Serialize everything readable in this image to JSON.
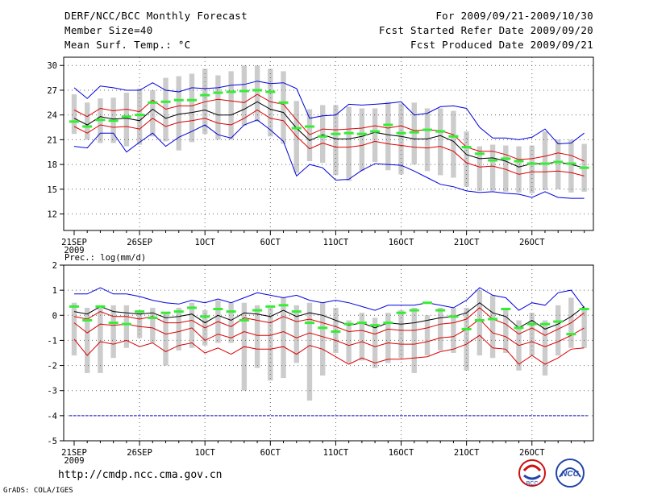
{
  "header": {
    "title": "DERF/NCC/BCC Monthly Forecast",
    "member": "Member Size=40",
    "var1": "Mean Surf. Temp.: °C",
    "period": "For 2009/09/21-2009/10/30",
    "started": "Fcst Started Refer Date 2009/09/20",
    "produced": "Fcst Produced Date 2009/09/21"
  },
  "footer": {
    "url": "http://cmdp.ncc.cma.gov.cn",
    "grads": "GrADS: COLA/IGES"
  },
  "logos": {
    "left": "BCC",
    "right": "NCC"
  },
  "colors": {
    "max": "#0000dd",
    "band": "#dd0000",
    "mean": "#000000",
    "box": "#cccccc",
    "median": "#33ee33"
  },
  "chart_data": [
    {
      "type": "line",
      "title": "Mean Surf. Temp.: °C",
      "x_tick_labels": [
        "21SEP",
        "26SEP",
        "1OCT",
        "6OCT",
        "11OCT",
        "16OCT",
        "21OCT",
        "26OCT"
      ],
      "x_year": "2009",
      "ylim": [
        10,
        31
      ],
      "y_ticks": [
        12,
        15,
        18,
        21,
        24,
        27,
        30
      ],
      "days": 40,
      "max": [
        27.3,
        26.0,
        27.5,
        27.3,
        27.0,
        27.0,
        27.9,
        27.0,
        26.8,
        27.3,
        27.2,
        27.3,
        27.6,
        27.7,
        28.1,
        27.8,
        27.9,
        27.2,
        23.6,
        23.9,
        24.0,
        25.3,
        25.2,
        25.3,
        25.4,
        25.6,
        24.0,
        24.2,
        25.0,
        25.1,
        24.8,
        22.5,
        21.2,
        21.2,
        21.0,
        21.3,
        22.3,
        20.5,
        20.6,
        21.8
      ],
      "upper": [
        24.6,
        23.8,
        24.8,
        24.5,
        24.7,
        24.4,
        25.8,
        24.7,
        25.1,
        25.1,
        25.6,
        25.9,
        25.7,
        25.5,
        26.5,
        25.6,
        25.3,
        23.4,
        21.6,
        22.3,
        22.2,
        22.3,
        22.4,
        22.7,
        22.4,
        22.7,
        22.1,
        22.2,
        22.1,
        21.6,
        20.1,
        19.6,
        19.6,
        19.2,
        18.6,
        18.7,
        19.0,
        19.4,
        19.1,
        18.4
      ],
      "mean": [
        23.6,
        22.8,
        23.8,
        23.5,
        23.6,
        23.3,
        24.7,
        23.6,
        24.1,
        24.3,
        24.6,
        24.0,
        24.0,
        24.7,
        25.6,
        24.7,
        24.3,
        22.4,
        20.9,
        21.6,
        21.1,
        21.1,
        21.4,
        21.9,
        21.6,
        21.4,
        21.1,
        21.1,
        21.5,
        20.8,
        19.2,
        18.7,
        18.8,
        18.4,
        17.7,
        18.1,
        18.1,
        18.3,
        18.0,
        17.6
      ],
      "lower": [
        22.6,
        21.8,
        22.8,
        22.5,
        22.6,
        22.3,
        23.6,
        22.6,
        23.1,
        23.3,
        23.6,
        23.0,
        22.8,
        23.6,
        24.6,
        23.6,
        23.3,
        21.4,
        19.9,
        20.6,
        20.1,
        20.1,
        20.3,
        20.8,
        20.5,
        20.3,
        20.1,
        20.0,
        20.2,
        19.6,
        18.2,
        17.7,
        17.8,
        17.4,
        16.8,
        17.1,
        17.1,
        17.2,
        17.0,
        16.6
      ],
      "min": [
        20.2,
        20.0,
        21.8,
        21.8,
        19.5,
        20.7,
        21.8,
        20.2,
        21.3,
        22.0,
        22.8,
        21.6,
        21.2,
        22.8,
        23.4,
        22.2,
        20.8,
        16.6,
        18.0,
        17.6,
        16.1,
        16.2,
        17.3,
        18.1,
        18.0,
        17.9,
        17.2,
        16.4,
        15.6,
        15.3,
        14.8,
        14.6,
        14.7,
        14.5,
        14.4,
        14.0,
        14.7,
        14.0,
        13.9,
        13.9
      ],
      "box_hi": [
        26.5,
        25.5,
        26.0,
        26.1,
        26.7,
        27.2,
        27.0,
        28.5,
        28.7,
        29.0,
        29.6,
        28.8,
        29.3,
        30.0,
        30.0,
        29.6,
        29.3,
        25.7,
        24.7,
        25.2,
        25.2,
        25.0,
        24.8,
        24.8,
        25.6,
        25.4,
        25.5,
        24.8,
        24.8,
        24.5,
        22.0,
        20.2,
        20.4,
        20.3,
        20.2,
        20.3,
        22.0,
        21.0,
        21.0,
        20.5
      ],
      "box_lo": [
        21.7,
        21.0,
        20.6,
        20.6,
        20.2,
        20.4,
        21.4,
        20.8,
        19.7,
        20.7,
        21.7,
        21.0,
        21.0,
        22.7,
        23.2,
        21.4,
        20.5,
        17.0,
        18.4,
        18.2,
        16.7,
        16.0,
        17.2,
        18.3,
        17.3,
        16.8,
        18.0,
        17.2,
        16.7,
        16.4,
        15.3,
        14.8,
        14.8,
        14.7,
        14.6,
        14.5,
        14.9,
        15.0,
        14.6,
        14.7
      ],
      "median": [
        23.2,
        22.6,
        23.4,
        23.3,
        23.8,
        24.0,
        25.5,
        25.6,
        25.8,
        25.8,
        26.4,
        26.7,
        26.8,
        26.9,
        27.0,
        26.8,
        25.5,
        22.4,
        22.6,
        21.4,
        21.7,
        21.8,
        21.7,
        22.0,
        22.8,
        21.8,
        21.9,
        22.2,
        22.0,
        21.4,
        20.1,
        19.3,
        18.5,
        18.7,
        18.4,
        18.1,
        18.1,
        18.3,
        18.1,
        17.6
      ]
    },
    {
      "type": "line",
      "title": "Prec.: log(mm/d)",
      "x_tick_labels": [
        "21SEP",
        "26SEP",
        "1OCT",
        "6OCT",
        "11OCT",
        "16OCT",
        "21OCT",
        "26OCT"
      ],
      "x_year": "2009",
      "ylim": [
        -5,
        2
      ],
      "y_ticks": [
        -5,
        -4,
        -3,
        -2,
        -1,
        0,
        1,
        2
      ],
      "days": 40,
      "floor": -4.0,
      "max": [
        0.85,
        0.85,
        1.1,
        0.85,
        0.85,
        0.75,
        0.6,
        0.5,
        0.45,
        0.6,
        0.5,
        0.65,
        0.5,
        0.7,
        0.9,
        0.8,
        0.7,
        0.8,
        0.6,
        0.5,
        0.6,
        0.5,
        0.35,
        0.2,
        0.4,
        0.4,
        0.4,
        0.5,
        0.4,
        0.3,
        0.6,
        1.1,
        0.8,
        0.7,
        0.2,
        0.5,
        0.4,
        0.9,
        1.0,
        0.3
      ],
      "mean": [
        0.15,
        0.05,
        0.35,
        0.15,
        0.1,
        0.05,
        0.1,
        -0.1,
        -0.05,
        0.05,
        -0.3,
        0.0,
        -0.2,
        0.1,
        0.05,
        -0.05,
        0.2,
        -0.05,
        0.1,
        0.0,
        -0.2,
        -0.4,
        -0.3,
        -0.5,
        -0.3,
        -0.35,
        -0.3,
        -0.2,
        -0.1,
        -0.05,
        0.1,
        0.5,
        0.1,
        -0.05,
        -0.5,
        -0.2,
        -0.55,
        -0.35,
        -0.05,
        0.35
      ],
      "upper": [
        -0.05,
        -0.15,
        0.15,
        -0.05,
        -0.05,
        -0.15,
        -0.05,
        -0.3,
        -0.3,
        -0.2,
        -0.5,
        -0.25,
        -0.45,
        -0.1,
        -0.2,
        -0.3,
        -0.05,
        -0.25,
        -0.15,
        -0.3,
        -0.45,
        -0.65,
        -0.6,
        -0.75,
        -0.55,
        -0.6,
        -0.6,
        -0.5,
        -0.35,
        -0.3,
        -0.15,
        0.3,
        -0.15,
        -0.35,
        -0.75,
        -0.5,
        -0.8,
        -0.55,
        -0.3,
        0.1
      ],
      "lower": [
        -0.3,
        -0.7,
        -0.35,
        -0.4,
        -0.35,
        -0.45,
        -0.5,
        -0.75,
        -0.65,
        -0.5,
        -1.0,
        -0.75,
        -0.9,
        -0.65,
        -0.8,
        -0.8,
        -0.65,
        -0.9,
        -0.7,
        -0.85,
        -1.0,
        -1.2,
        -1.05,
        -1.25,
        -1.1,
        -1.15,
        -1.15,
        -1.05,
        -0.9,
        -0.85,
        -0.55,
        -0.15,
        -0.7,
        -0.85,
        -1.2,
        -1.05,
        -1.25,
        -1.05,
        -0.8,
        -0.5
      ],
      "min": [
        -0.95,
        -1.6,
        -1.05,
        -1.15,
        -1.0,
        -1.25,
        -1.1,
        -1.45,
        -1.2,
        -1.1,
        -1.5,
        -1.3,
        -1.55,
        -1.25,
        -1.35,
        -1.35,
        -1.25,
        -1.55,
        -1.2,
        -1.35,
        -1.65,
        -1.95,
        -1.7,
        -1.9,
        -1.75,
        -1.75,
        -1.7,
        -1.65,
        -1.45,
        -1.35,
        -1.15,
        -0.8,
        -1.3,
        -1.35,
        -1.95,
        -1.6,
        -1.95,
        -1.7,
        -1.35,
        -1.3
      ],
      "box_hi": [
        0.5,
        0.3,
        0.3,
        0.4,
        0.4,
        0.1,
        0.3,
        0.1,
        0.3,
        0.5,
        0.2,
        0.6,
        0.5,
        0.5,
        0.4,
        0.3,
        0.7,
        0.4,
        0.5,
        0.5,
        0.3,
        -0.2,
        0.1,
        -0.1,
        0.1,
        0.2,
        0.3,
        0.0,
        0.3,
        0.3,
        0.3,
        1.0,
        0.8,
        0.3,
        -0.2,
        0.1,
        -0.2,
        0.4,
        0.7,
        0.3
      ],
      "box_lo": [
        -1.6,
        -2.3,
        -2.3,
        -1.7,
        -1.3,
        -0.9,
        -1.1,
        -2.0,
        -1.4,
        -1.3,
        -1.2,
        -1.1,
        -1.1,
        -3.0,
        -2.1,
        -2.6,
        -2.5,
        -1.9,
        -3.4,
        -2.4,
        -1.5,
        -1.9,
        -1.8,
        -2.1,
        -1.9,
        -1.7,
        -2.3,
        -1.6,
        -1.4,
        -1.5,
        -2.2,
        -1.6,
        -1.7,
        -1.5,
        -2.2,
        -1.6,
        -2.4,
        -1.6,
        -1.3,
        -1.3
      ],
      "median": [
        0.35,
        -0.2,
        0.35,
        -0.3,
        -0.35,
        0.15,
        -0.1,
        0.1,
        0.15,
        0.3,
        -0.05,
        0.25,
        0.15,
        -0.2,
        0.2,
        0.35,
        0.4,
        0.15,
        -0.3,
        -0.5,
        -0.65,
        -0.35,
        -0.3,
        -0.4,
        -0.3,
        0.1,
        0.2,
        0.5,
        0.2,
        -0.05,
        -0.55,
        -0.2,
        -0.15,
        0.25,
        -0.5,
        -0.35,
        -0.35,
        -0.25,
        -0.75,
        0.25
      ]
    }
  ]
}
